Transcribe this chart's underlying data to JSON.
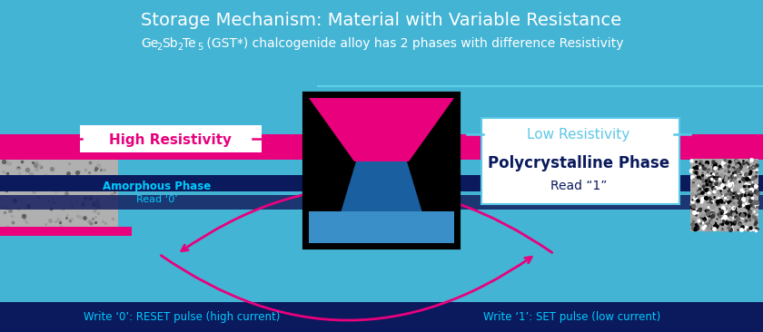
{
  "title": "Storage Mechanism: Material with Variable Resistance",
  "subtitle": " (GST*) chalcogenide alloy has 2 phases with difference Resistivity",
  "bg_color": "#44b4d4",
  "magenta": "#e8007d",
  "navy": "#0a1a5c",
  "white": "#ffffff",
  "cyan_line": "#5cd0e8",
  "left_label": "High Resistivity",
  "left_phase": "Amorphous Phase",
  "left_read": "Read ‘0’",
  "right_label": "Low Resistivity",
  "right_phase": "Polycrystalline Phase",
  "right_read": "Read “1”",
  "bottom_left": "Write ‘0’: RESET pulse (high current)",
  "bottom_right": "Write ‘1’: SET pulse (low current)",
  "cell_blue": "#1a5fa0",
  "cell_blue2": "#3a8fc8"
}
